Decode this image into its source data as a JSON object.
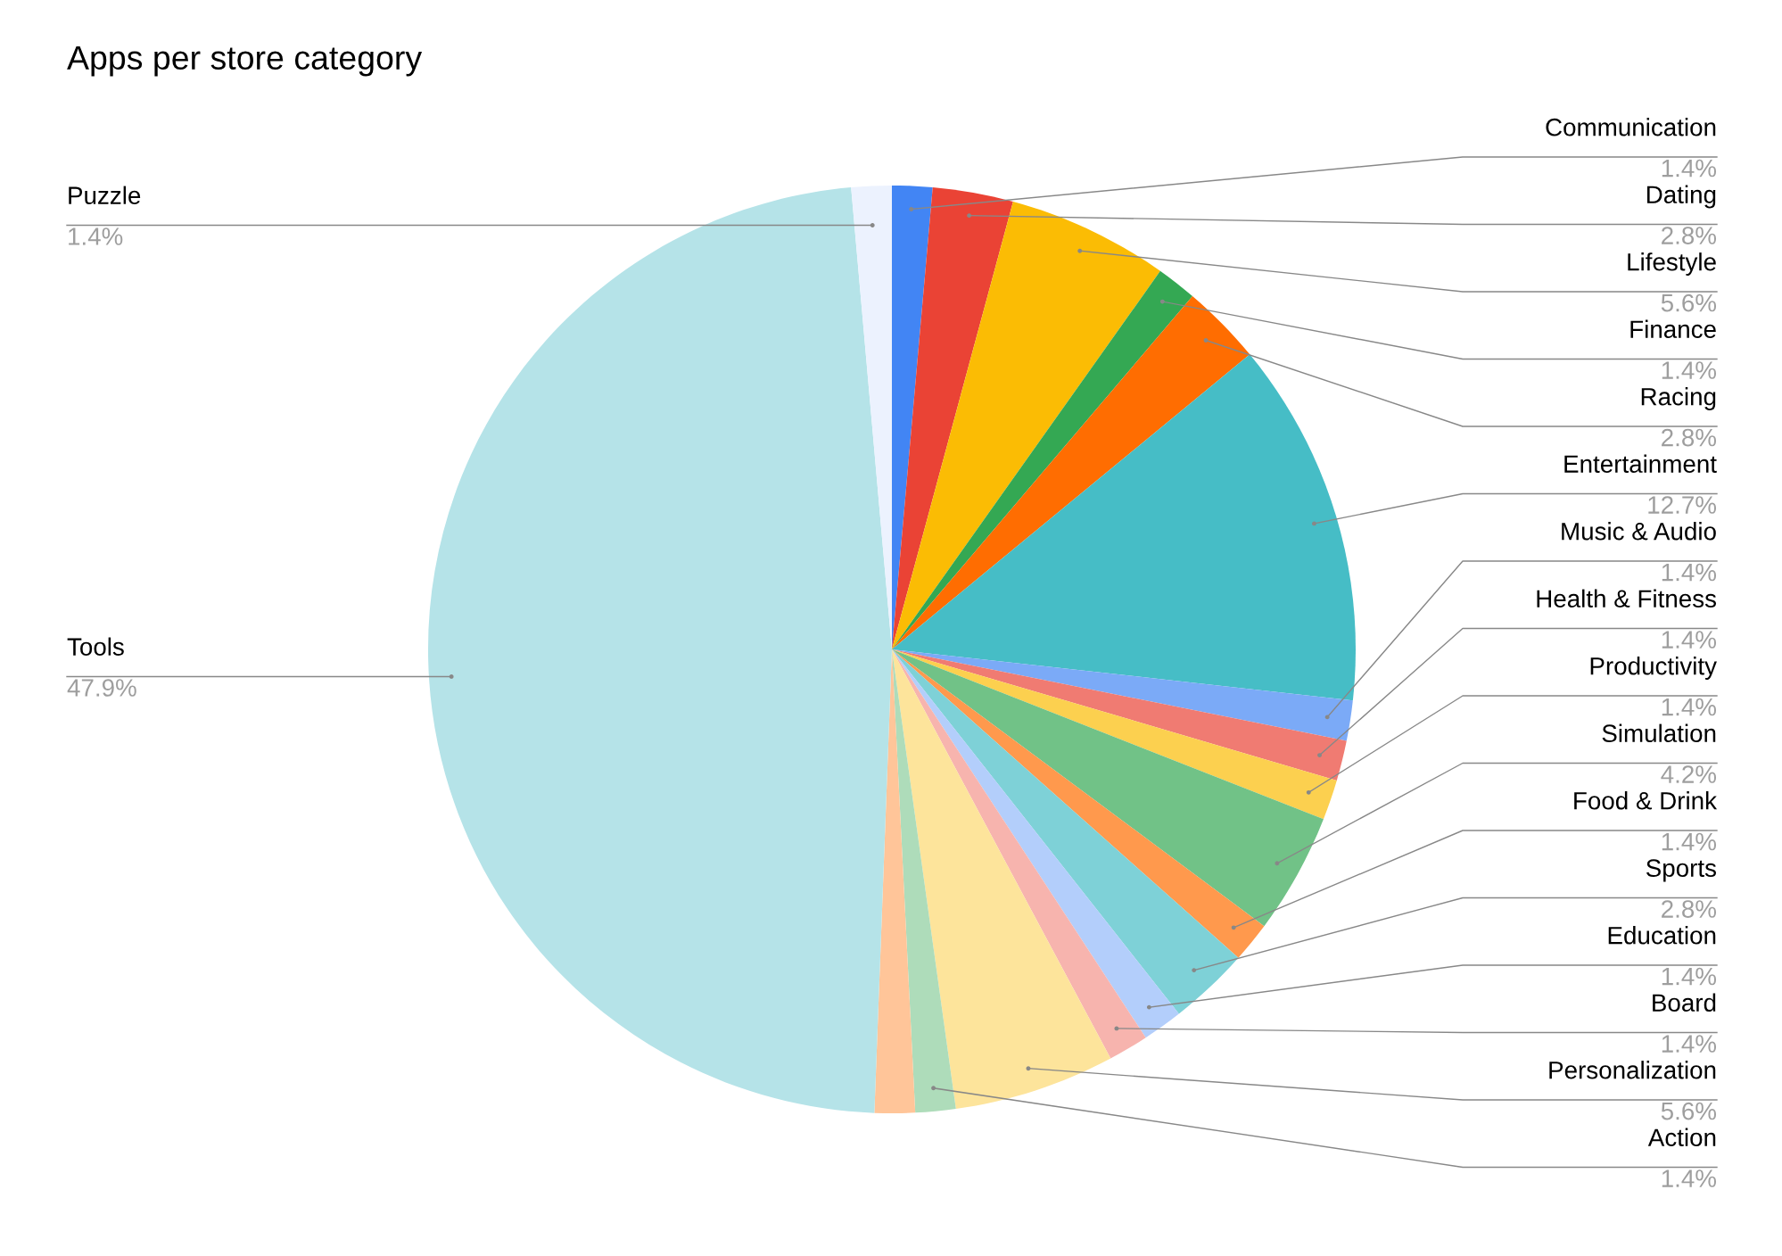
{
  "chart_data": {
    "type": "pie",
    "title": "Apps per store category",
    "categories": [
      "Communication",
      "Dating",
      "Lifestyle",
      "Finance",
      "Racing",
      "Entertainment",
      "Music & Audio",
      "Health & Fitness",
      "Productivity",
      "Simulation",
      "Food & Drink",
      "Sports",
      "Education",
      "Board",
      "Personalization",
      "Action",
      null,
      "Tools",
      "Puzzle"
    ],
    "values": [
      1.4,
      2.8,
      5.6,
      1.4,
      2.8,
      12.7,
      1.4,
      1.4,
      1.4,
      4.2,
      1.4,
      2.8,
      1.4,
      1.4,
      5.6,
      1.4,
      1.4,
      47.9,
      1.4
    ],
    "colors": [
      "#4285f4",
      "#ea4335",
      "#fbbc04",
      "#34a853",
      "#ff6d01",
      "#46bdc6",
      "#7baaf7",
      "#f07b72",
      "#fcd04f",
      "#71c287",
      "#ff994d",
      "#7ed1d7",
      "#b3cefb",
      "#f7b4ae",
      "#fde49b",
      "#aedcba",
      "#ffc599",
      "#b5e3e8",
      "#ecf2fe"
    ],
    "value_labels": [
      "1.4%",
      "2.8%",
      "5.6%",
      "1.4%",
      "2.8%",
      "12.7%",
      "1.4%",
      "1.4%",
      "1.4%",
      "4.2%",
      "1.4%",
      "2.8%",
      "1.4%",
      "1.4%",
      "5.6%",
      "1.4%",
      null,
      "47.9%",
      "1.4%"
    ]
  }
}
